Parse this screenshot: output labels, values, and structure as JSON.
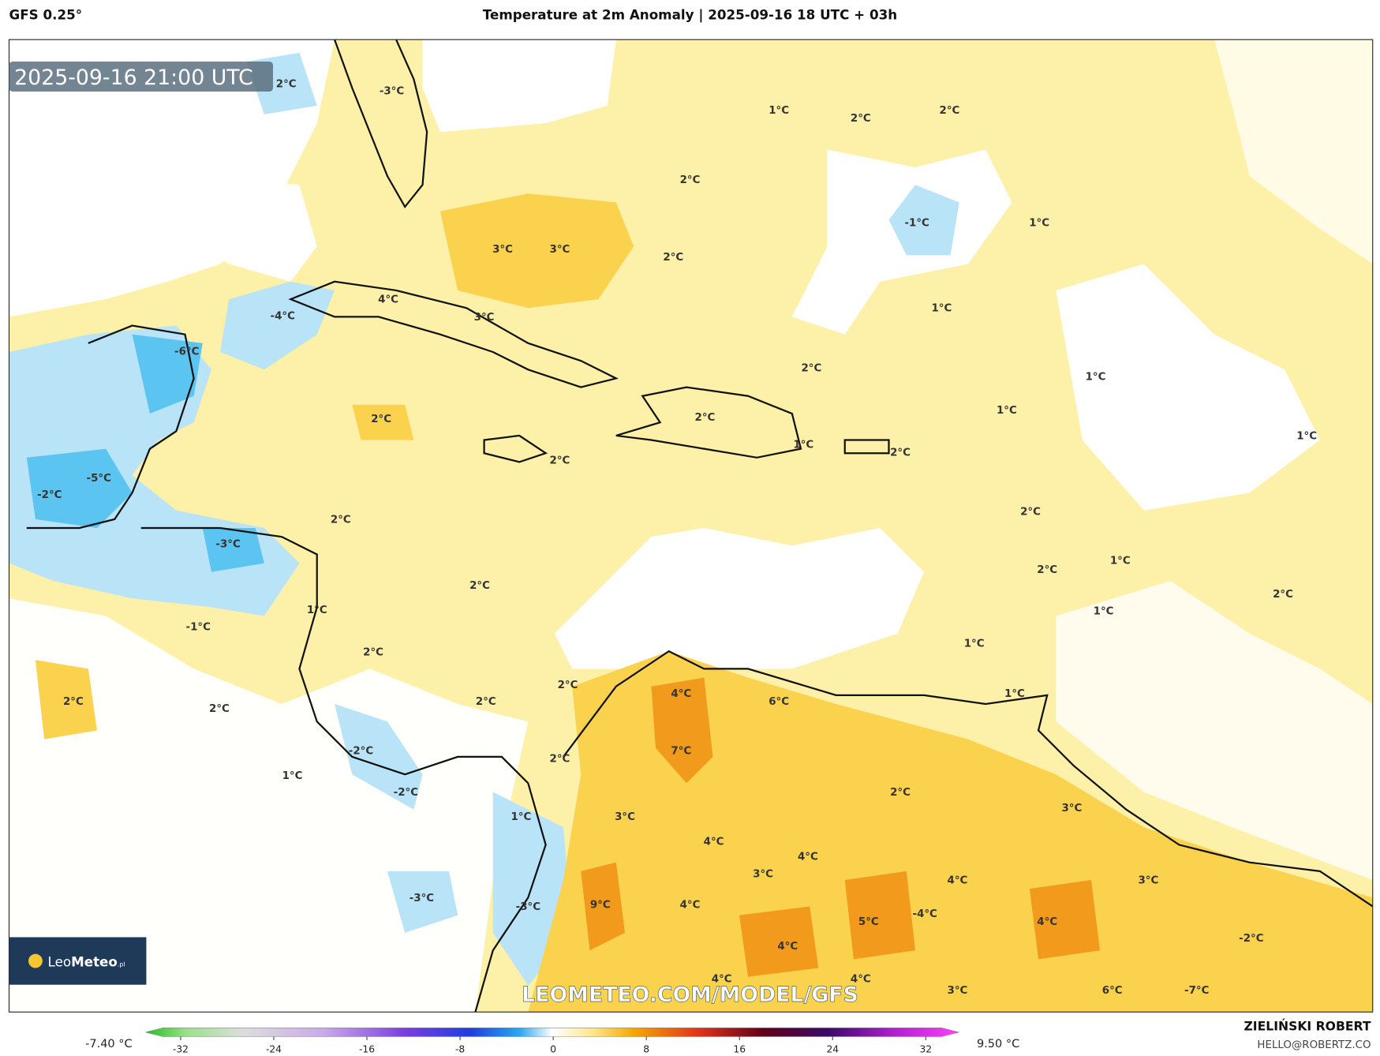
{
  "header": {
    "model": "GFS 0.25°",
    "title": "Temperature at 2m Anomaly | 2025-09-16 18 UTC + 03h"
  },
  "map": {
    "timestamp": "2025-09-16 21:00 UTC",
    "watermark": "LEOMETEO.COM/MODEL/GFS",
    "logo": {
      "part1": "Leo",
      "part2": "Meteo",
      "suffix": ".pl"
    },
    "contour_labels": [
      "2°C",
      "-3°C",
      "1°C",
      "2°C",
      "2°C",
      "2°C",
      "-1°C",
      "1°C",
      "3°C",
      "3°C",
      "2°C",
      "1°C",
      "4°C",
      "3°C",
      "-4°C",
      "-6°C",
      "2°C",
      "1°C",
      "1°C",
      "2°C",
      "2°C",
      "1°C",
      "1°C",
      "2°C",
      "2°C",
      "-5°C",
      "-2°C",
      "2°C",
      "2°C",
      "-3°C",
      "2°C",
      "1°C",
      "2°C",
      "1°C",
      "1°C",
      "2°C",
      "-1°C",
      "1°C",
      "2°C",
      "2°C",
      "1°C",
      "4°C",
      "2°C",
      "2°C",
      "2°C",
      "6°C",
      "7°C",
      "-2°C",
      "2°C",
      "1°C",
      "-2°C",
      "2°C",
      "3°C",
      "1°C",
      "3°C",
      "4°C",
      "4°C",
      "3°C",
      "4°C",
      "3°C",
      "-3°C",
      "-3°C",
      "9°C",
      "4°C",
      "5°C",
      "-4°C",
      "4°C",
      "4°C",
      "-2°C",
      "4°C",
      "4°C",
      "3°C",
      "6°C",
      "-7°C"
    ]
  },
  "colorbar": {
    "min_label": "-7.40 °C",
    "max_label": "9.50 °C",
    "ticks": [
      -32,
      -24,
      -16,
      -8,
      0,
      8,
      16,
      24,
      32
    ]
  },
  "credits": {
    "author": "ZIELIŃSKI ROBERT",
    "email": "HELLO@ROBERTZ.CO"
  }
}
